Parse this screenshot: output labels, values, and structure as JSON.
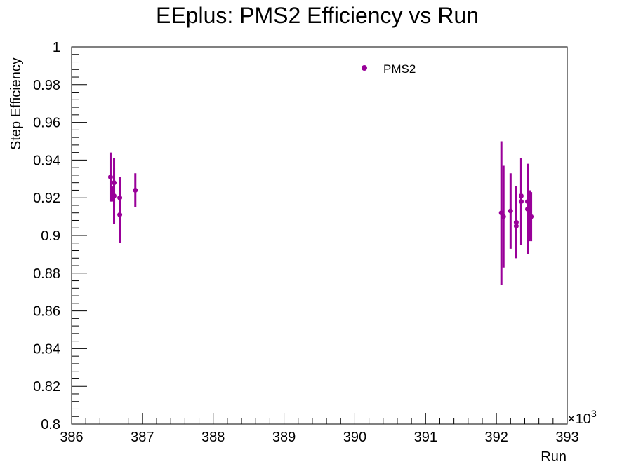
{
  "chart_data": {
    "type": "scatter",
    "title": "EEplus: PMS2 Efficiency vs Run",
    "xlabel": "Run",
    "ylabel": "Step Efficiency",
    "x_multiplier_label": "×10",
    "x_multiplier_exponent": "3",
    "xlim": [
      386,
      393
    ],
    "ylim": [
      0.8,
      1.0
    ],
    "x_ticks": [
      386,
      387,
      388,
      389,
      390,
      391,
      392,
      393
    ],
    "x_tick_labels": [
      "386",
      "387",
      "388",
      "389",
      "390",
      "391",
      "392",
      "393"
    ],
    "y_ticks": [
      0.8,
      0.82,
      0.84,
      0.86,
      0.88,
      0.9,
      0.92,
      0.94,
      0.96,
      0.98,
      1.0
    ],
    "y_tick_labels": [
      "0.8",
      "0.82",
      "0.84",
      "0.86",
      "0.88",
      "0.9",
      "0.92",
      "0.94",
      "0.96",
      "0.98",
      "1"
    ],
    "legend": {
      "position": "top-right",
      "entries": [
        "PMS2"
      ]
    },
    "grid": false,
    "series": [
      {
        "name": "PMS2",
        "color": "#990099",
        "points": [
          {
            "x": 386.55,
            "y": 0.931,
            "err": 0.013
          },
          {
            "x": 386.57,
            "y": 0.922,
            "err": 0.004
          },
          {
            "x": 386.6,
            "y": 0.928,
            "err": 0.013
          },
          {
            "x": 386.6,
            "y": 0.921,
            "err": 0.015
          },
          {
            "x": 386.68,
            "y": 0.92,
            "err": 0.011
          },
          {
            "x": 386.68,
            "y": 0.911,
            "err": 0.015
          },
          {
            "x": 386.9,
            "y": 0.924,
            "err": 0.009
          },
          {
            "x": 392.07,
            "y": 0.912,
            "err": 0.038
          },
          {
            "x": 392.1,
            "y": 0.91,
            "err": 0.027
          },
          {
            "x": 392.2,
            "y": 0.913,
            "err": 0.02
          },
          {
            "x": 392.28,
            "y": 0.907,
            "err": 0.019
          },
          {
            "x": 392.28,
            "y": 0.905,
            "err": 0.017
          },
          {
            "x": 392.35,
            "y": 0.921,
            "err": 0.02
          },
          {
            "x": 392.35,
            "y": 0.918,
            "err": 0.023
          },
          {
            "x": 392.44,
            "y": 0.914,
            "err": 0.024
          },
          {
            "x": 392.44,
            "y": 0.918,
            "err": 0.02
          },
          {
            "x": 392.46,
            "y": 0.91,
            "err": 0.013
          },
          {
            "x": 392.47,
            "y": 0.911,
            "err": 0.013
          },
          {
            "x": 392.49,
            "y": 0.91,
            "err": 0.013
          }
        ]
      }
    ]
  }
}
